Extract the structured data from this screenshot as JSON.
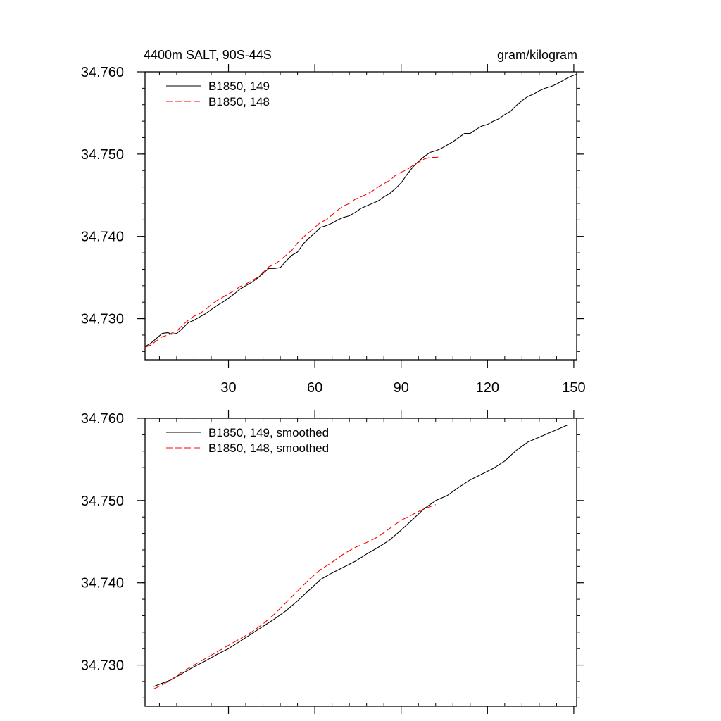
{
  "chart_data": [
    {
      "type": "line",
      "title_left": "4400m SALT, 90S-44S",
      "title_right": "gram/kilogram",
      "xlim": [
        1,
        151
      ],
      "ylim": [
        34.725,
        34.76
      ],
      "x_ticks": [
        30,
        60,
        90,
        120,
        150
      ],
      "x_tick_labels": [
        "30",
        "60",
        "90",
        "120",
        "150"
      ],
      "y_ticks": [
        34.73,
        34.74,
        34.75,
        34.76
      ],
      "y_tick_labels": [
        "34.730",
        "34.740",
        "34.750",
        "34.760"
      ],
      "legend_position": "top-left",
      "series": [
        {
          "name": "B1850, 149",
          "color": "#000000",
          "dash": "solid",
          "points": [
            [
              1,
              34.7266
            ],
            [
              3,
              34.727
            ],
            [
              5,
              34.7276
            ],
            [
              7,
              34.7282
            ],
            [
              9,
              34.7283
            ],
            [
              10,
              34.7281
            ],
            [
              12,
              34.7282
            ],
            [
              14,
              34.7288
            ],
            [
              16,
              34.7295
            ],
            [
              18,
              34.7298
            ],
            [
              20,
              34.7302
            ],
            [
              22,
              34.7306
            ],
            [
              24,
              34.7311
            ],
            [
              26,
              34.7316
            ],
            [
              28,
              34.732
            ],
            [
              30,
              34.7325
            ],
            [
              32,
              34.733
            ],
            [
              34,
              34.7336
            ],
            [
              36,
              34.734
            ],
            [
              38,
              34.7344
            ],
            [
              40,
              34.7349
            ],
            [
              42,
              34.7355
            ],
            [
              44,
              34.7361
            ],
            [
              46,
              34.7361
            ],
            [
              48,
              34.7362
            ],
            [
              50,
              34.737
            ],
            [
              52,
              34.7377
            ],
            [
              54,
              34.7381
            ],
            [
              56,
              34.7391
            ],
            [
              58,
              34.7398
            ],
            [
              60,
              34.7404
            ],
            [
              62,
              34.7411
            ],
            [
              64,
              34.7413
            ],
            [
              66,
              34.7416
            ],
            [
              68,
              34.742
            ],
            [
              70,
              34.7423
            ],
            [
              72,
              34.7425
            ],
            [
              74,
              34.7429
            ],
            [
              76,
              34.7434
            ],
            [
              78,
              34.7437
            ],
            [
              80,
              34.744
            ],
            [
              82,
              34.7443
            ],
            [
              84,
              34.7448
            ],
            [
              86,
              34.7452
            ],
            [
              88,
              34.7458
            ],
            [
              90,
              34.7465
            ],
            [
              92,
              34.7475
            ],
            [
              94,
              34.7484
            ],
            [
              96,
              34.7491
            ],
            [
              98,
              34.7497
            ],
            [
              100,
              34.7502
            ],
            [
              102,
              34.7504
            ],
            [
              104,
              34.7507
            ],
            [
              106,
              34.7511
            ],
            [
              108,
              34.7515
            ],
            [
              110,
              34.752
            ],
            [
              112,
              34.7525
            ],
            [
              114,
              34.7525
            ],
            [
              116,
              34.753
            ],
            [
              118,
              34.7534
            ],
            [
              120,
              34.7536
            ],
            [
              122,
              34.754
            ],
            [
              124,
              34.7543
            ],
            [
              126,
              34.7548
            ],
            [
              128,
              34.7552
            ],
            [
              130,
              34.7559
            ],
            [
              132,
              34.7565
            ],
            [
              134,
              34.757
            ],
            [
              136,
              34.7573
            ],
            [
              138,
              34.7577
            ],
            [
              140,
              34.758
            ],
            [
              142,
              34.7582
            ],
            [
              144,
              34.7585
            ],
            [
              146,
              34.7589
            ],
            [
              148,
              34.7593
            ],
            [
              150,
              34.7596
            ],
            [
              151,
              34.7597
            ]
          ]
        },
        {
          "name": "B1850, 148",
          "color": "#ff0000",
          "dash": "dashed",
          "points": [
            [
              1,
              34.7265
            ],
            [
              3,
              34.7268
            ],
            [
              5,
              34.7273
            ],
            [
              7,
              34.7278
            ],
            [
              9,
              34.728
            ],
            [
              10,
              34.7282
            ],
            [
              12,
              34.7285
            ],
            [
              14,
              34.7292
            ],
            [
              16,
              34.7298
            ],
            [
              18,
              34.7303
            ],
            [
              20,
              34.7306
            ],
            [
              22,
              34.7311
            ],
            [
              24,
              34.7317
            ],
            [
              26,
              34.7322
            ],
            [
              28,
              34.7326
            ],
            [
              30,
              34.733
            ],
            [
              32,
              34.7334
            ],
            [
              34,
              34.7339
            ],
            [
              36,
              34.7342
            ],
            [
              38,
              34.7346
            ],
            [
              40,
              34.735
            ],
            [
              42,
              34.7356
            ],
            [
              44,
              34.7363
            ],
            [
              46,
              34.7366
            ],
            [
              48,
              34.7371
            ],
            [
              50,
              34.7377
            ],
            [
              52,
              34.7383
            ],
            [
              54,
              34.7392
            ],
            [
              56,
              34.7399
            ],
            [
              58,
              34.7405
            ],
            [
              60,
              34.7411
            ],
            [
              62,
              34.7417
            ],
            [
              64,
              34.742
            ],
            [
              66,
              34.7426
            ],
            [
              68,
              34.7432
            ],
            [
              70,
              34.7437
            ],
            [
              72,
              34.744
            ],
            [
              74,
              34.7445
            ],
            [
              76,
              34.7448
            ],
            [
              78,
              34.7451
            ],
            [
              80,
              34.7455
            ],
            [
              82,
              34.746
            ],
            [
              84,
              34.7464
            ],
            [
              86,
              34.7468
            ],
            [
              88,
              34.7474
            ],
            [
              90,
              34.7478
            ],
            [
              92,
              34.7481
            ],
            [
              94,
              34.7486
            ],
            [
              96,
              34.749
            ],
            [
              98,
              34.7494
            ],
            [
              100,
              34.7496
            ],
            [
              102,
              34.7496
            ],
            [
              104,
              34.7497
            ]
          ]
        }
      ]
    },
    {
      "type": "line",
      "xlim": [
        1,
        151
      ],
      "ylim": [
        34.725,
        34.76
      ],
      "x_ticks": [
        30,
        60,
        90,
        120,
        150
      ],
      "y_ticks": [
        34.73,
        34.74,
        34.75,
        34.76
      ],
      "y_tick_labels": [
        "34.730",
        "34.740",
        "34.750",
        "34.760"
      ],
      "legend_position": "top-left",
      "series": [
        {
          "name": "B1850, 149, smoothed",
          "color": "#000000",
          "dash": "solid",
          "points": [
            [
              4,
              34.7274
            ],
            [
              7,
              34.7278
            ],
            [
              10,
              34.7282
            ],
            [
              14,
              34.729
            ],
            [
              18,
              34.7298
            ],
            [
              22,
              34.7305
            ],
            [
              26,
              34.7313
            ],
            [
              30,
              34.732
            ],
            [
              34,
              34.7329
            ],
            [
              38,
              34.7338
            ],
            [
              42,
              34.7347
            ],
            [
              46,
              34.7356
            ],
            [
              50,
              34.7366
            ],
            [
              54,
              34.7378
            ],
            [
              58,
              34.7391
            ],
            [
              62,
              34.7404
            ],
            [
              66,
              34.7412
            ],
            [
              70,
              34.7419
            ],
            [
              74,
              34.7426
            ],
            [
              78,
              34.7435
            ],
            [
              82,
              34.7443
            ],
            [
              86,
              34.7452
            ],
            [
              90,
              34.7464
            ],
            [
              94,
              34.7477
            ],
            [
              98,
              34.749
            ],
            [
              102,
              34.75
            ],
            [
              106,
              34.7506
            ],
            [
              110,
              34.7516
            ],
            [
              114,
              34.7525
            ],
            [
              118,
              34.7532
            ],
            [
              122,
              34.7539
            ],
            [
              126,
              34.7548
            ],
            [
              130,
              34.7561
            ],
            [
              134,
              34.7571
            ],
            [
              138,
              34.7577
            ],
            [
              142,
              34.7583
            ],
            [
              146,
              34.7589
            ],
            [
              148,
              34.7592
            ]
          ]
        },
        {
          "name": "B1850, 148, smoothed",
          "color": "#ff0000",
          "dash": "dashed",
          "points": [
            [
              4,
              34.7271
            ],
            [
              7,
              34.7276
            ],
            [
              10,
              34.7282
            ],
            [
              14,
              34.7292
            ],
            [
              18,
              34.73
            ],
            [
              22,
              34.7308
            ],
            [
              26,
              34.7316
            ],
            [
              30,
              34.7324
            ],
            [
              34,
              34.7332
            ],
            [
              38,
              34.734
            ],
            [
              42,
              34.735
            ],
            [
              46,
              34.7362
            ],
            [
              50,
              34.7376
            ],
            [
              54,
              34.739
            ],
            [
              58,
              34.7404
            ],
            [
              62,
              34.7416
            ],
            [
              66,
              34.7425
            ],
            [
              70,
              34.7435
            ],
            [
              74,
              34.7443
            ],
            [
              78,
              34.7449
            ],
            [
              82,
              34.7456
            ],
            [
              86,
              34.7466
            ],
            [
              90,
              34.7476
            ],
            [
              94,
              34.7483
            ],
            [
              98,
              34.749
            ],
            [
              102,
              34.7495
            ]
          ]
        }
      ]
    }
  ]
}
